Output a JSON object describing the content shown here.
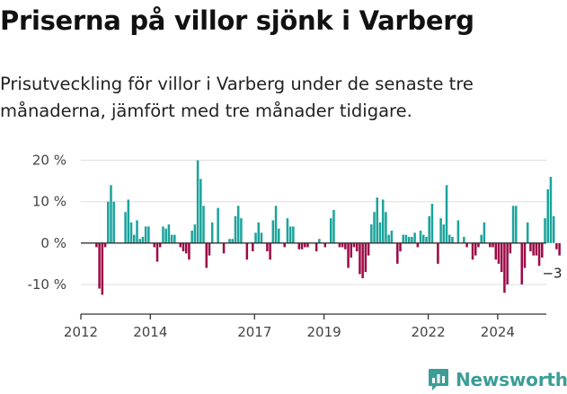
{
  "title": "Priserna på villor sjönk i Varberg",
  "subtitle": "Prisutveckling för villor i Varberg under de senaste tre månaderna, jämfört med tre månader tidigare.",
  "brand": {
    "name": "Newsworthy",
    "icon": "chart-bubble-icon",
    "color": "#3a9e97"
  },
  "colors": {
    "positive": "#1ba39c",
    "negative": "#9c0a47",
    "grid": "#dddddd",
    "axis": "#333333"
  },
  "chart_data": {
    "type": "bar",
    "y_ticks": [
      {
        "value": 20,
        "label": "20 %"
      },
      {
        "value": 10,
        "label": "10 %"
      },
      {
        "value": 0,
        "label": "0 %"
      },
      {
        "value": -10,
        "label": "-10 %"
      }
    ],
    "x_ticks": [
      {
        "year": 2012,
        "label": "2012"
      },
      {
        "year": 2014,
        "label": "2014"
      },
      {
        "year": 2017,
        "label": "2017"
      },
      {
        "year": 2019,
        "label": "2019"
      },
      {
        "year": 2022,
        "label": "2022"
      },
      {
        "year": 2024,
        "label": "2024"
      }
    ],
    "ylim": [
      -15,
      21
    ],
    "xlim": [
      2012.0,
      2025.4
    ],
    "start": 2012.45,
    "step": 0.0833,
    "annotation": {
      "label": "−3 %",
      "value": -3
    },
    "values": [
      -1,
      -11,
      -12.5,
      -1,
      10,
      14,
      10,
      0,
      0,
      0,
      7.5,
      10.5,
      5,
      2,
      5.5,
      1,
      1.5,
      4,
      4,
      0,
      -1,
      -4.5,
      -1,
      4,
      3.5,
      4.5,
      2,
      2,
      0,
      -1,
      -2,
      -2.5,
      -4,
      3,
      4.5,
      20,
      15.5,
      9,
      -6,
      -3,
      5,
      0,
      8.5,
      0,
      -2.5,
      0,
      1,
      1,
      6.5,
      9,
      6,
      0,
      -4,
      0,
      -2,
      2.5,
      5,
      2.5,
      0,
      -2,
      -4,
      5.5,
      9,
      3.5,
      0,
      -1,
      6,
      4,
      4,
      0,
      -1.5,
      -1.5,
      -1,
      -1,
      0,
      0,
      -2,
      1,
      0,
      -1,
      0,
      6,
      8,
      0,
      -1,
      -1,
      -1.5,
      -6,
      -3.5,
      -1,
      -2,
      -7.5,
      -8.5,
      -7,
      -3,
      4.5,
      7.5,
      11,
      5,
      10.5,
      7.5,
      2,
      3,
      0,
      -5,
      -2,
      2,
      2,
      1.5,
      1.5,
      2.5,
      -1,
      3,
      2,
      1.5,
      6.5,
      9.5,
      0,
      -5,
      6,
      4.5,
      14,
      2,
      1.5,
      0,
      5.5,
      0,
      1.5,
      -1,
      0,
      -4,
      -3,
      -1,
      2,
      5,
      0,
      -1,
      -1,
      -4,
      -5,
      -7,
      -12,
      -10,
      -2.5,
      9,
      9,
      0,
      -10,
      -6,
      5,
      -2,
      -3,
      -3,
      -5.5,
      -3.5,
      6,
      13,
      16,
      6.5,
      -1.5,
      -3
    ]
  }
}
